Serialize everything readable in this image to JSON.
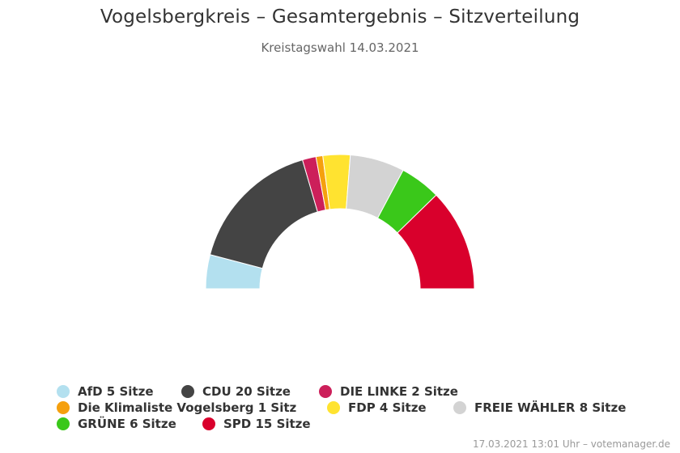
{
  "chart_data": {
    "type": "pie",
    "variant": "semicircle-parliament",
    "title": "Vogelsbergkreis – Gesamtergebnis – Sitzverteilung",
    "subtitle": "Kreistagswahl 14.03.2021",
    "unit": "Sitze",
    "legend_position": "bottom",
    "series": [
      {
        "name": "AfD",
        "value": 5,
        "label": "AfD 5 Sitze",
        "color": "#b3e0ef"
      },
      {
        "name": "CDU",
        "value": 20,
        "label": "CDU 20 Sitze",
        "color": "#444444"
      },
      {
        "name": "DIE LINKE",
        "value": 2,
        "label": "DIE LINKE 2 Sitze",
        "color": "#cc1f5a"
      },
      {
        "name": "Die Klimaliste Vogelsberg",
        "value": 1,
        "label": "Die Klimaliste Vogelsberg 1 Sitz",
        "color": "#f5a00e"
      },
      {
        "name": "FDP",
        "value": 4,
        "label": "FDP 4 Sitze",
        "color": "#ffe330"
      },
      {
        "name": "FREIE WÄHLER",
        "value": 8,
        "label": "FREIE WÄHLER 8 Sitze",
        "color": "#d3d3d3"
      },
      {
        "name": "GRÜNE",
        "value": 6,
        "label": "GRÜNE 6 Sitze",
        "color": "#3ac81a"
      },
      {
        "name": "SPD",
        "value": 15,
        "label": "SPD 15 Sitze",
        "color": "#d9002c"
      }
    ]
  },
  "credits": "17.03.2021 13:01 Uhr – votemanager.de"
}
